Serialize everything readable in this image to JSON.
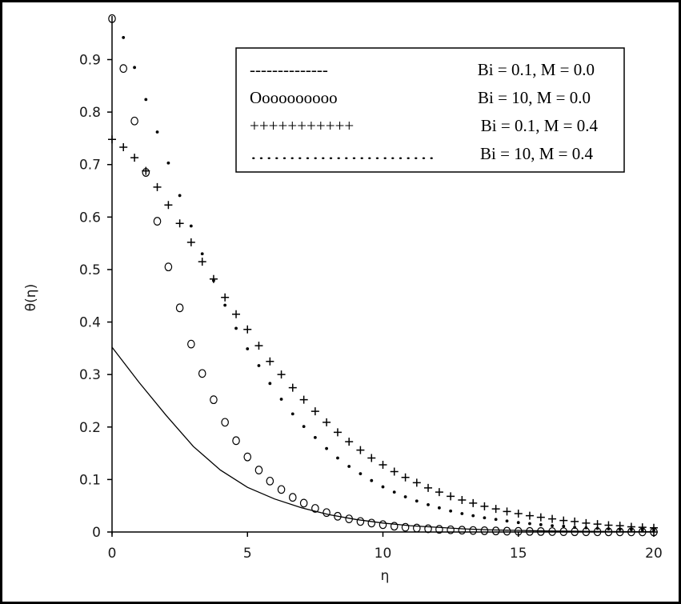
{
  "chart_data": {
    "type": "line",
    "title": "",
    "xlabel": "η",
    "ylabel": "θ(η)",
    "xlim": [
      0,
      20
    ],
    "ylim": [
      0,
      0.98
    ],
    "xticks": [
      "0",
      "5",
      "10",
      "15",
      "20"
    ],
    "yticks": [
      "0",
      "0.1",
      "0.2",
      "0.3",
      "0.4",
      "0.5",
      "0.6",
      "0.7",
      "0.8",
      "0.9"
    ],
    "grid": false,
    "legend_position": "top-right",
    "legend": [
      {
        "marker_text": "--------------",
        "label": "Bi = 0.1, M = 0.0"
      },
      {
        "marker_text": "Oooooooooo",
        "label": "Bi = 10, M = 0.0"
      },
      {
        "marker_text": "+++++++++++",
        "label": "Bi = 0.1, M = 0.4"
      },
      {
        "marker_text": "……………………",
        "label": "Bi = 10, M = 0.4"
      }
    ],
    "series": [
      {
        "style": "solid",
        "x": [
          0,
          1,
          2,
          3,
          4,
          5,
          6,
          7,
          8,
          9,
          10,
          11,
          12,
          13,
          14,
          15,
          16,
          17,
          18,
          19,
          20
        ],
        "y": [
          0.352,
          0.285,
          0.222,
          0.163,
          0.118,
          0.085,
          0.063,
          0.046,
          0.033,
          0.024,
          0.017,
          0.012,
          0.009,
          0.006,
          0.004,
          0.003,
          0.002,
          0.0015,
          0.001,
          0.0007,
          0.0005
        ]
      },
      {
        "style": "circle",
        "x": [
          0,
          0.42,
          0.83,
          1.25,
          1.67,
          2.08,
          2.5,
          2.92,
          3.33,
          3.75,
          4.17,
          4.58,
          5.0,
          5.42,
          5.83,
          6.25,
          6.67,
          7.08,
          7.5,
          7.92,
          8.33,
          8.75,
          9.17,
          9.58,
          10.0,
          10.42,
          10.83,
          11.25,
          11.67,
          12.08,
          12.5,
          12.92,
          13.33,
          13.75,
          14.17,
          14.58,
          15.0,
          15.42,
          15.83,
          16.25,
          16.67,
          17.08,
          17.5,
          17.92,
          18.33,
          18.75,
          19.17,
          19.58,
          20.0
        ],
        "y": [
          0.978,
          0.883,
          0.783,
          0.685,
          0.592,
          0.505,
          0.427,
          0.358,
          0.302,
          0.252,
          0.209,
          0.174,
          0.143,
          0.118,
          0.097,
          0.081,
          0.066,
          0.055,
          0.045,
          0.037,
          0.03,
          0.025,
          0.02,
          0.017,
          0.014,
          0.011,
          0.009,
          0.0075,
          0.0062,
          0.0051,
          0.0042,
          0.0035,
          0.0029,
          0.0024,
          0.002,
          0.0016,
          0.0013,
          0.0011,
          0.0009,
          0.00075,
          0.00062,
          0.00051,
          0.00042,
          0.00035,
          0.00029,
          0.00024,
          0.0002,
          0.00016,
          0.00013
        ]
      },
      {
        "style": "plus",
        "x": [
          0,
          0.42,
          0.83,
          1.25,
          1.67,
          2.08,
          2.5,
          2.92,
          3.33,
          3.75,
          4.17,
          4.58,
          5.0,
          5.42,
          5.83,
          6.25,
          6.67,
          7.08,
          7.5,
          7.92,
          8.33,
          8.75,
          9.17,
          9.58,
          10.0,
          10.42,
          10.83,
          11.25,
          11.67,
          12.08,
          12.5,
          12.92,
          13.33,
          13.75,
          14.17,
          14.58,
          15.0,
          15.42,
          15.83,
          16.25,
          16.67,
          17.08,
          17.5,
          17.92,
          18.33,
          18.75,
          19.17,
          19.58,
          20.0
        ],
        "y": [
          0.748,
          0.733,
          0.713,
          0.688,
          0.657,
          0.623,
          0.588,
          0.552,
          0.515,
          0.482,
          0.447,
          0.415,
          0.386,
          0.355,
          0.325,
          0.3,
          0.275,
          0.252,
          0.23,
          0.209,
          0.19,
          0.172,
          0.156,
          0.141,
          0.128,
          0.115,
          0.104,
          0.094,
          0.084,
          0.076,
          0.068,
          0.061,
          0.055,
          0.049,
          0.044,
          0.039,
          0.035,
          0.031,
          0.028,
          0.025,
          0.022,
          0.02,
          0.017,
          0.015,
          0.013,
          0.012,
          0.01,
          0.009,
          0.008
        ]
      },
      {
        "style": "dot",
        "x": [
          0.42,
          0.83,
          1.25,
          1.67,
          2.08,
          2.5,
          2.92,
          3.33,
          3.75,
          4.17,
          4.58,
          5.0,
          5.42,
          5.83,
          6.25,
          6.67,
          7.08,
          7.5,
          7.92,
          8.33,
          8.75,
          9.17,
          9.58,
          10.0,
          10.42,
          10.83,
          11.25,
          11.67,
          12.08,
          12.5,
          12.92,
          13.33,
          13.75,
          14.17,
          14.58,
          15.0,
          15.42,
          15.83,
          16.25,
          16.67,
          17.08,
          17.5,
          17.92,
          18.33,
          18.75,
          19.17,
          19.58,
          20.0
        ],
        "y": [
          0.942,
          0.885,
          0.824,
          0.762,
          0.703,
          0.641,
          0.583,
          0.53,
          0.479,
          0.432,
          0.388,
          0.349,
          0.317,
          0.283,
          0.253,
          0.225,
          0.201,
          0.18,
          0.159,
          0.141,
          0.125,
          0.111,
          0.098,
          0.086,
          0.076,
          0.067,
          0.059,
          0.052,
          0.046,
          0.04,
          0.035,
          0.031,
          0.027,
          0.024,
          0.021,
          0.018,
          0.016,
          0.014,
          0.012,
          0.011,
          0.009,
          0.008,
          0.007,
          0.006,
          0.005,
          0.0045,
          0.004,
          0.0035
        ]
      }
    ]
  }
}
